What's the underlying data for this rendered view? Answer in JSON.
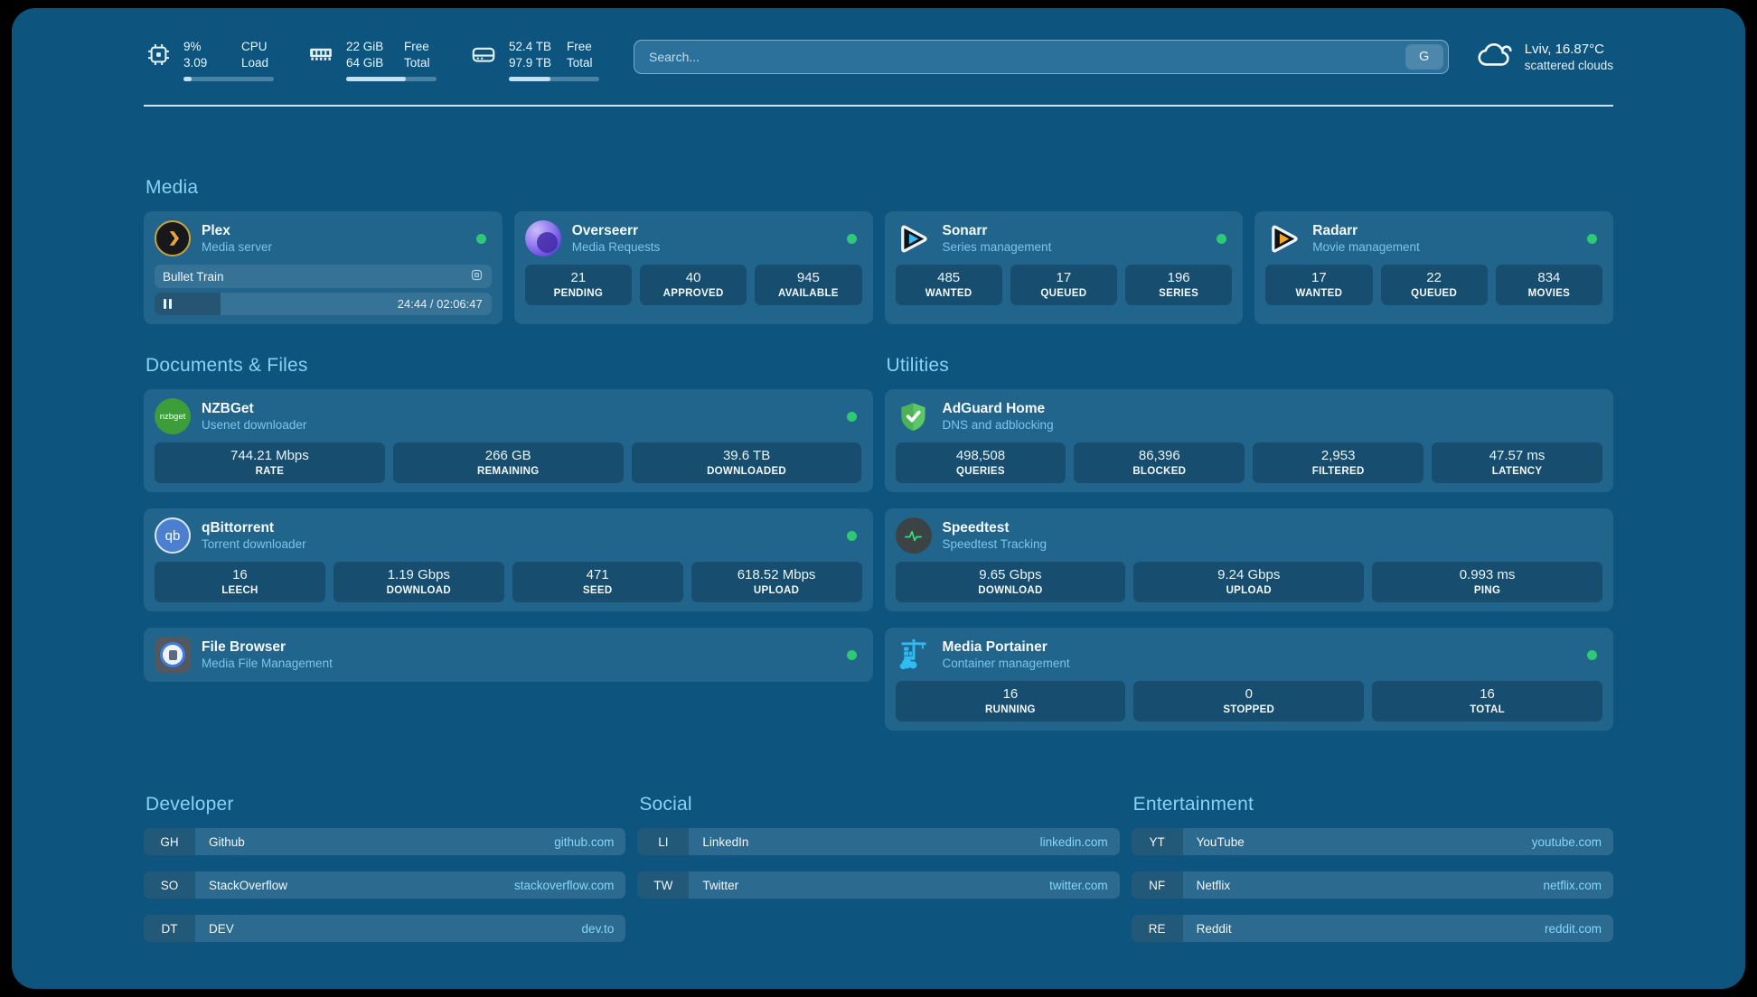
{
  "colors": {
    "page_bg": "#0d557f",
    "card_bg": "#21648c",
    "status_green": "#2ec977",
    "section_title": "#87d3f6",
    "subtitle": "#7cc5ea",
    "bookmark_domain": "#86d6f9"
  },
  "header": {
    "resources": [
      {
        "icon": "cpu-icon",
        "values": [
          "9%",
          "3.09"
        ],
        "labels": [
          "CPU",
          "Load"
        ],
        "progress_pct": 9
      },
      {
        "icon": "memory-icon",
        "values": [
          "22 GiB",
          "64 GiB"
        ],
        "labels": [
          "Free",
          "Total"
        ],
        "progress_pct": 66
      },
      {
        "icon": "disk-icon",
        "values": [
          "52.4 TB",
          "97.9 TB"
        ],
        "labels": [
          "Free",
          "Total"
        ],
        "progress_pct": 46
      }
    ],
    "search": {
      "placeholder": "Search...",
      "button": "G"
    },
    "weather": {
      "icon": "cloud-icon",
      "location_temp": "Lviv, 16.87°C",
      "condition": "scattered clouds"
    }
  },
  "sections": {
    "media": {
      "title": "Media",
      "plex": {
        "icon": "plex-icon",
        "title": "Plex",
        "subtitle": "Media server",
        "status": "online",
        "now_playing": "Bullet Train",
        "time": "24:44 / 02:06:47",
        "progress_pct": 19.5
      },
      "overseerr": {
        "icon": "overseerr-icon",
        "title": "Overseerr",
        "subtitle": "Media Requests",
        "status": "online",
        "stats": [
          {
            "value": "21",
            "label": "PENDING"
          },
          {
            "value": "40",
            "label": "APPROVED"
          },
          {
            "value": "945",
            "label": "AVAILABLE"
          }
        ]
      },
      "sonarr": {
        "icon": "sonarr-icon",
        "title": "Sonarr",
        "subtitle": "Series management",
        "status": "online",
        "stats": [
          {
            "value": "485",
            "label": "WANTED"
          },
          {
            "value": "17",
            "label": "QUEUED"
          },
          {
            "value": "196",
            "label": "SERIES"
          }
        ]
      },
      "radarr": {
        "icon": "radarr-icon",
        "title": "Radarr",
        "subtitle": "Movie management",
        "status": "online",
        "stats": [
          {
            "value": "17",
            "label": "WANTED"
          },
          {
            "value": "22",
            "label": "QUEUED"
          },
          {
            "value": "834",
            "label": "MOVIES"
          }
        ]
      }
    },
    "documents": {
      "title": "Documents & Files",
      "nzbget": {
        "icon": "nzbget-icon",
        "icon_text": "nzbget",
        "title": "NZBGet",
        "subtitle": "Usenet downloader",
        "status": "online",
        "stats": [
          {
            "value": "744.21 Mbps",
            "label": "RATE"
          },
          {
            "value": "266 GB",
            "label": "REMAINING"
          },
          {
            "value": "39.6 TB",
            "label": "DOWNLOADED"
          }
        ]
      },
      "qbittorrent": {
        "icon": "qbittorrent-icon",
        "icon_text": "qb",
        "title": "qBittorrent",
        "subtitle": "Torrent downloader",
        "status": "online",
        "stats": [
          {
            "value": "16",
            "label": "LEECH"
          },
          {
            "value": "1.19 Gbps",
            "label": "DOWNLOAD"
          },
          {
            "value": "471",
            "label": "SEED"
          },
          {
            "value": "618.52 Mbps",
            "label": "UPLOAD"
          }
        ]
      },
      "filebrowser": {
        "icon": "filebrowser-icon",
        "title": "File Browser",
        "subtitle": "Media File Management",
        "status": "online"
      }
    },
    "utilities": {
      "title": "Utilities",
      "adguard": {
        "icon": "adguard-icon",
        "title": "AdGuard Home",
        "subtitle": "DNS and adblocking",
        "stats": [
          {
            "value": "498,508",
            "label": "QUERIES"
          },
          {
            "value": "86,396",
            "label": "BLOCKED"
          },
          {
            "value": "2,953",
            "label": "FILTERED"
          },
          {
            "value": "47.57 ms",
            "label": "LATENCY"
          }
        ]
      },
      "speedtest": {
        "icon": "speedtest-icon",
        "title": "Speedtest",
        "subtitle": "Speedtest Tracking",
        "stats": [
          {
            "value": "9.65 Gbps",
            "label": "DOWNLOAD"
          },
          {
            "value": "9.24 Gbps",
            "label": "UPLOAD"
          },
          {
            "value": "0.993 ms",
            "label": "PING"
          }
        ]
      },
      "portainer": {
        "icon": "portainer-icon",
        "title": "Media Portainer",
        "subtitle": "Container management",
        "status": "online",
        "stats": [
          {
            "value": "16",
            "label": "RUNNING"
          },
          {
            "value": "0",
            "label": "STOPPED"
          },
          {
            "value": "16",
            "label": "TOTAL"
          }
        ]
      }
    },
    "bookmarks": [
      {
        "title": "Developer",
        "items": [
          {
            "abbr": "GH",
            "name": "Github",
            "domain": "github.com"
          },
          {
            "abbr": "SO",
            "name": "StackOverflow",
            "domain": "stackoverflow.com"
          },
          {
            "abbr": "DT",
            "name": "DEV",
            "domain": "dev.to"
          }
        ]
      },
      {
        "title": "Social",
        "items": [
          {
            "abbr": "LI",
            "name": "LinkedIn",
            "domain": "linkedin.com"
          },
          {
            "abbr": "TW",
            "name": "Twitter",
            "domain": "twitter.com"
          }
        ]
      },
      {
        "title": "Entertainment",
        "items": [
          {
            "abbr": "YT",
            "name": "YouTube",
            "domain": "youtube.com"
          },
          {
            "abbr": "NF",
            "name": "Netflix",
            "domain": "netflix.com"
          },
          {
            "abbr": "RE",
            "name": "Reddit",
            "domain": "reddit.com"
          }
        ]
      }
    ]
  }
}
